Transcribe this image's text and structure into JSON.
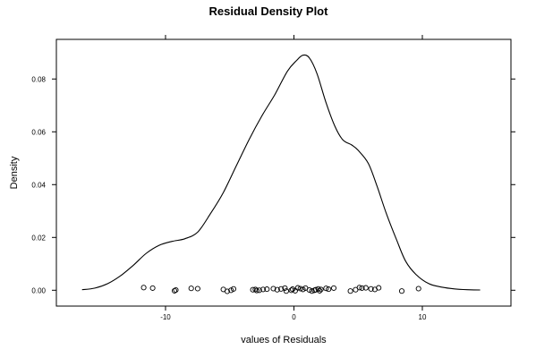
{
  "chart_data": {
    "type": "line",
    "title": "Residual Density Plot",
    "xlabel": "values of Residuals",
    "ylabel": "Density",
    "xlim": [
      -18.5,
      16.9
    ],
    "ylim": [
      -0.006,
      0.095
    ],
    "x_ticks": [
      -10,
      0,
      10
    ],
    "x_tick_labels": [
      "-10",
      "0",
      "10"
    ],
    "y_ticks": [
      0,
      0.02,
      0.04,
      0.06,
      0.08
    ],
    "y_tick_labels": [
      "0.00",
      "0.02",
      "0.04",
      "0.06",
      "0.08"
    ],
    "grid": false,
    "legend": "none",
    "line_color": "#000000",
    "series": [
      {
        "kind": "density-curve",
        "x": [
          -16.5,
          -15.5,
          -14.5,
          -13.5,
          -12.5,
          -11.5,
          -10.5,
          -9.5,
          -8.5,
          -7.5,
          -6.5,
          -5.5,
          -4.5,
          -3.5,
          -2.5,
          -1.5,
          -0.5,
          0.2,
          0.7,
          1.2,
          1.8,
          2.5,
          3.2,
          3.8,
          4.5,
          5.0,
          5.8,
          6.5,
          7.2,
          8.0,
          8.7,
          9.5,
          10.5,
          11.5,
          12.5,
          13.5,
          14.5
        ],
        "y": [
          0.0002,
          0.0008,
          0.0025,
          0.0055,
          0.0095,
          0.014,
          0.017,
          0.0185,
          0.0195,
          0.022,
          0.029,
          0.037,
          0.047,
          0.057,
          0.066,
          0.074,
          0.083,
          0.087,
          0.089,
          0.088,
          0.082,
          0.071,
          0.062,
          0.057,
          0.055,
          0.053,
          0.048,
          0.039,
          0.029,
          0.019,
          0.011,
          0.006,
          0.0025,
          0.0012,
          0.0005,
          0.0002,
          0.0001
        ]
      },
      {
        "kind": "rug-points",
        "x": [
          -11.7,
          -11.0,
          -9.3,
          -9.2,
          -8.0,
          -7.5,
          -5.5,
          -5.2,
          -4.9,
          -4.7,
          -3.2,
          -3.0,
          -2.9,
          -2.7,
          -2.4,
          -2.1,
          -1.6,
          -1.3,
          -1.0,
          -0.7,
          -0.6,
          -0.2,
          -0.1,
          0.1,
          0.3,
          0.5,
          0.7,
          0.9,
          1.2,
          1.4,
          1.6,
          1.7,
          1.9,
          2.0,
          2.1,
          2.5,
          2.7,
          3.1,
          4.4,
          4.8,
          5.1,
          5.3,
          5.6,
          6.0,
          6.3,
          6.6,
          8.4,
          9.7
        ],
        "y": [
          0.001,
          0.0008,
          -0.0002,
          0.0001,
          0.0007,
          0.0006,
          0.0003,
          -0.0004,
          0.0,
          0.0005,
          0.0002,
          0.0003,
          -0.0001,
          0.0,
          0.0003,
          0.0004,
          0.0006,
          0.0002,
          0.0005,
          0.0008,
          -0.0003,
          0.0,
          0.0004,
          -0.0002,
          0.0009,
          0.0006,
          0.0003,
          0.0008,
          0.0001,
          -0.0003,
          0.0,
          0.0002,
          0.0005,
          -0.0002,
          0.0003,
          0.0007,
          0.0004,
          0.0008,
          -0.0003,
          0.0002,
          0.001,
          0.0008,
          0.0009,
          0.0005,
          0.0003,
          0.0009,
          -0.0003,
          0.0006
        ]
      }
    ]
  }
}
